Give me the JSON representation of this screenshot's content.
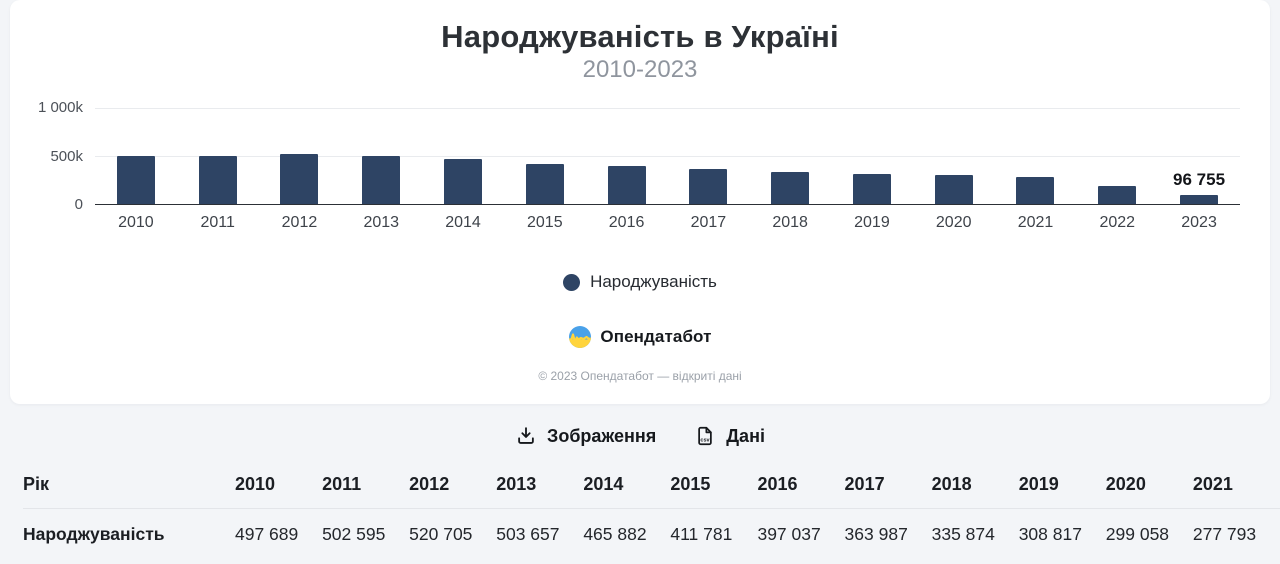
{
  "header": {
    "title": "Народжуваність в Україні",
    "subtitle": "2010-2023"
  },
  "chart_data": {
    "type": "bar",
    "categories": [
      "2010",
      "2011",
      "2012",
      "2013",
      "2014",
      "2015",
      "2016",
      "2017",
      "2018",
      "2019",
      "2020",
      "2021",
      "2022",
      "2023"
    ],
    "values": [
      497689,
      502595,
      520705,
      503657,
      465882,
      411781,
      397037,
      363987,
      335874,
      308817,
      299058,
      277793,
      190000,
      96755
    ],
    "series_name": "Народжуваність",
    "title": "Народжуваність в Україні",
    "subtitle": "2010-2023",
    "xlabel": "",
    "ylabel": "",
    "ylim": [
      0,
      1000000
    ],
    "yticks": [
      "1 000k",
      "500k",
      "0"
    ],
    "ytick_values": [
      1000000,
      500000,
      0
    ],
    "grid": true,
    "legend_position": "bottom",
    "bar_color": "#2e4464",
    "annotations": [
      {
        "category": "2023",
        "text": "96 755"
      }
    ]
  },
  "legend": {
    "label": "Народжуваність",
    "dot_color": "#2e4464"
  },
  "branding": {
    "logo_text": "Опендатабот",
    "logo_blue": "#49a1e9",
    "logo_yellow": "#ffd43c"
  },
  "footer": {
    "copyright": "© 2023 Опендатабот — відкриті дані"
  },
  "toolbar": {
    "image_button": "Зображення",
    "data_button": "Дані"
  },
  "table": {
    "first_column_header": "Рік",
    "year_columns": [
      "2010",
      "2011",
      "2012",
      "2013",
      "2014",
      "2015",
      "2016",
      "2017",
      "2018",
      "2019",
      "2020",
      "2021"
    ],
    "row_label": "Народжуваність",
    "row_values": [
      "497 689",
      "502 595",
      "520 705",
      "503 657",
      "465 882",
      "411 781",
      "397 037",
      "363 987",
      "335 874",
      "308 817",
      "299 058",
      "277 793"
    ]
  }
}
